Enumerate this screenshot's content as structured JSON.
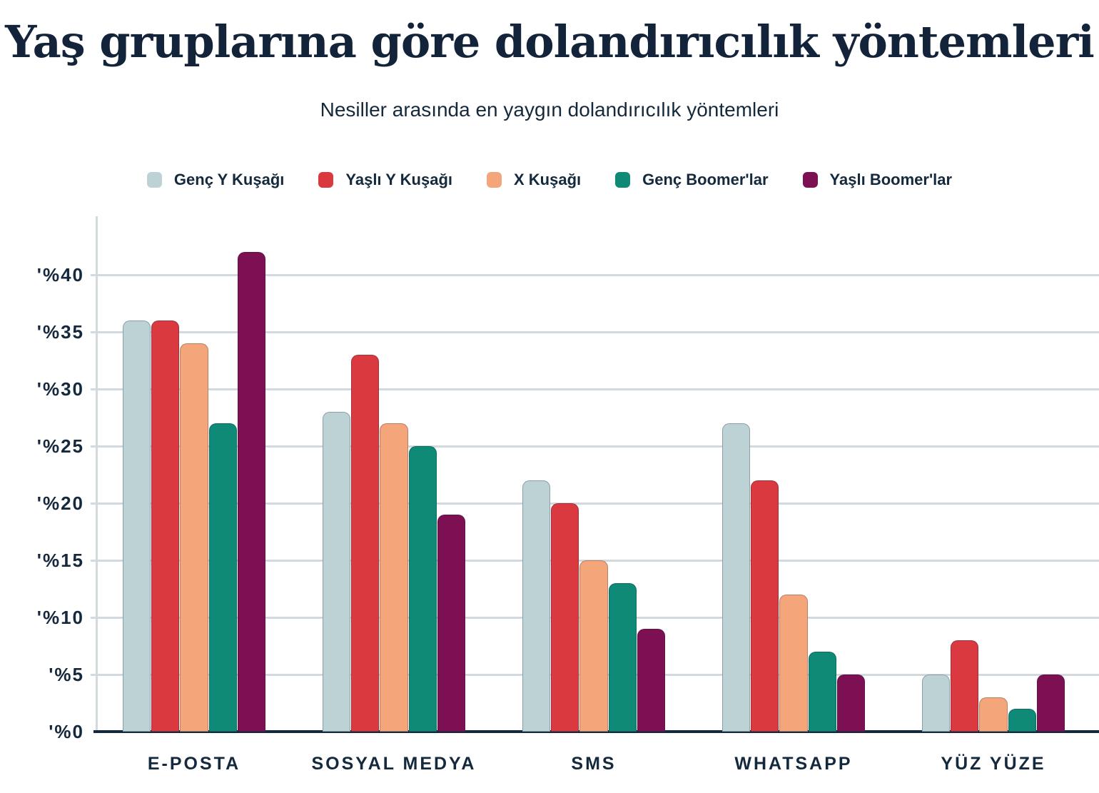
{
  "header": {
    "title": "Yaş gruplarına göre dolandırıcılık yöntemleri",
    "subtitle": "Nesiller arasında en yaygın dolandırıcılık yöntemleri"
  },
  "colors": {
    "title_text": "#12233A",
    "label_text": "#14293D",
    "gridline": "#D3D9DC",
    "axis_line": "#13293E",
    "background": "#FFFFFF"
  },
  "chart_data": {
    "type": "bar",
    "title": "Yaş gruplarına göre dolandırıcılık yöntemleri",
    "subtitle": "Nesiller arasında en yaygın dolandırıcılık yöntemleri",
    "categories": [
      "E-POSTA",
      "SOSYAL MEDYA",
      "SMS",
      "WHATSAPP",
      "YÜZ YÜZE"
    ],
    "series": [
      {
        "name": "Genç Y Kuşağı",
        "color": "#BCD2D4",
        "values": [
          36,
          28,
          22,
          27,
          5
        ]
      },
      {
        "name": "Yaşlı Y Kuşağı",
        "color": "#D9393F",
        "values": [
          36,
          33,
          20,
          22,
          8
        ]
      },
      {
        "name": "X Kuşağı",
        "color": "#F5A57A",
        "values": [
          34,
          27,
          15,
          12,
          3
        ]
      },
      {
        "name": "Genç Boomer'lar",
        "color": "#0E8A77",
        "values": [
          27,
          25,
          13,
          7,
          2
        ]
      },
      {
        "name": "Yaşlı Boomer'lar",
        "color": "#7C1053",
        "values": [
          42,
          19,
          9,
          5,
          5
        ]
      }
    ],
    "y_ticks": [
      0,
      5,
      10,
      15,
      20,
      25,
      30,
      35,
      40
    ],
    "y_tick_labels": [
      "'%0",
      "'%5",
      "'%10",
      "'%15",
      "'%20",
      "'%25",
      "'%30",
      "'%35",
      "'%40"
    ],
    "ylim": [
      0,
      45
    ],
    "xlabel": "",
    "ylabel": "",
    "grid": "horizontal",
    "legend_position": "top"
  }
}
